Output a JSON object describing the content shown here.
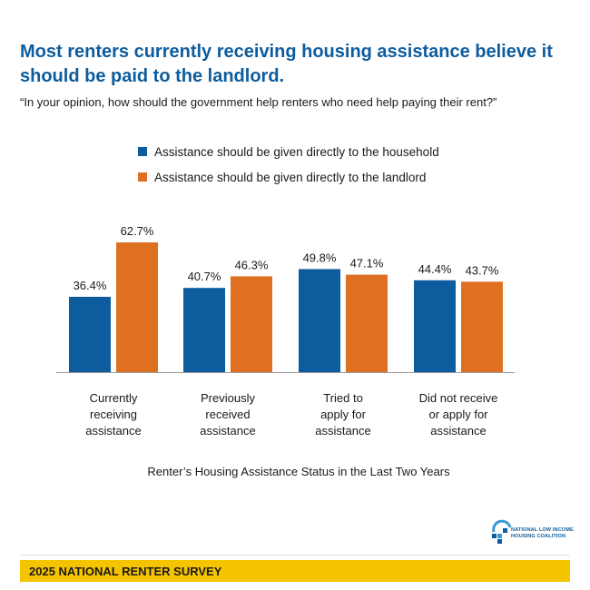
{
  "title": "Most renters currently receiving housing assistance believe it should be paid to the landlord.",
  "subtitle": "“In your opinion, how should the government help renters who need help paying their rent?”",
  "colors": {
    "household": "#0d5c9e",
    "landlord": "#e07021",
    "footer": "#f5c400",
    "title": "#0d5c9e"
  },
  "chart_data": {
    "type": "bar",
    "categories": [
      [
        "Currently",
        "receiving",
        "assistance"
      ],
      [
        "Previously",
        "received",
        "assistance"
      ],
      [
        "Tried to",
        "apply for",
        "assistance"
      ],
      [
        "Did not receive",
        "or apply for",
        "assistance"
      ]
    ],
    "series": [
      {
        "name": "Assistance should be given directly to the household",
        "values": [
          36.4,
          40.7,
          49.8,
          44.4
        ],
        "color": "#0d5c9e"
      },
      {
        "name": "Assistance should be given directly to the landlord",
        "values": [
          62.7,
          46.3,
          47.1,
          43.7
        ],
        "color": "#e07021"
      }
    ],
    "value_suffix": "%",
    "xlabel": "Renter’s Housing Assistance Status in the Last Two Years",
    "ylabel": "",
    "ylim": [
      0,
      75
    ],
    "grid": false,
    "legend": "top"
  },
  "logo": {
    "line1": "NATIONAL LOW INCOME",
    "line2": "HOUSING COALITION",
    "icon": "house-logo-icon"
  },
  "footer": {
    "label": "2025 NATIONAL RENTER SURVEY"
  }
}
